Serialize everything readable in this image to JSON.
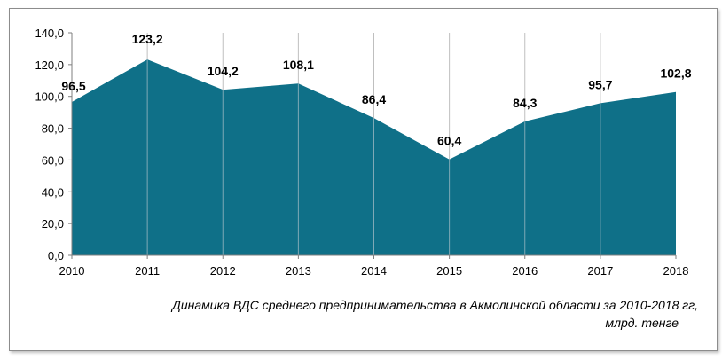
{
  "chart_data": {
    "type": "area",
    "title": "",
    "x": [
      "2010",
      "2011",
      "2012",
      "2013",
      "2014",
      "2015",
      "2016",
      "2017",
      "2018"
    ],
    "series": [
      {
        "values": [
          96.5,
          123.2,
          104.2,
          108.1,
          86.4,
          60.4,
          84.3,
          95.7,
          102.8
        ]
      }
    ],
    "data_labels": [
      "96,5",
      "123,2",
      "104,2",
      "108,1",
      "86,4",
      "60,4",
      "84,3",
      "95,7",
      "102,8"
    ],
    "y_ticks": [
      "0,0",
      "20,0",
      "40,0",
      "60,0",
      "80,0",
      "100,0",
      "120,0",
      "140,0"
    ],
    "ylim": [
      0,
      140
    ],
    "grid": "vertical",
    "fill_color": "#0f7088",
    "caption": [
      "Динамика  ВДС среднего предпринимательства в Акмолинской области за 2010-2018 гг,",
      "млрд. тенге"
    ]
  }
}
